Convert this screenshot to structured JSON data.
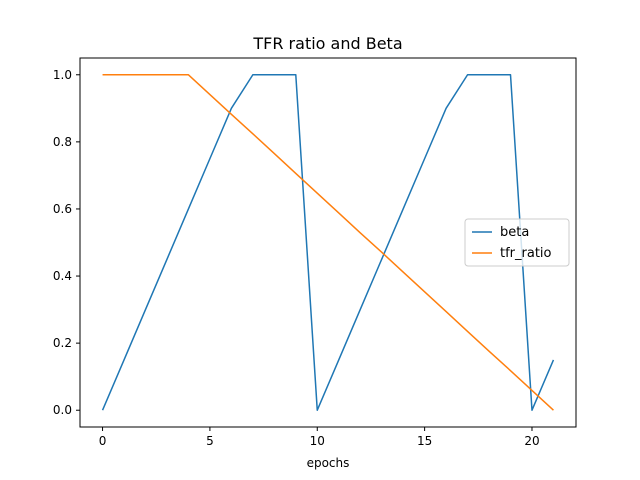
{
  "chart_data": {
    "type": "line",
    "title": "TFR ratio and Beta",
    "xlabel": "epochs",
    "ylabel": "",
    "xlim": [
      -1.05,
      22.05
    ],
    "ylim": [
      -0.05,
      1.05
    ],
    "xticks": [
      0,
      5,
      10,
      15,
      20
    ],
    "yticks": [
      0.0,
      0.2,
      0.4,
      0.6,
      0.8,
      1.0
    ],
    "ytick_labels": [
      "0.0",
      "0.2",
      "0.4",
      "0.6",
      "0.8",
      "1.0"
    ],
    "grid": false,
    "legend_position": "center-right",
    "x": [
      0,
      1,
      2,
      3,
      4,
      5,
      6,
      7,
      8,
      9,
      10,
      11,
      12,
      13,
      14,
      15,
      16,
      17,
      18,
      19,
      20,
      21
    ],
    "series": [
      {
        "name": "beta",
        "color": "#1f77b4",
        "values": [
          0.0,
          0.15,
          0.3,
          0.45,
          0.6,
          0.75,
          0.9,
          1.0,
          1.0,
          1.0,
          0.0,
          0.15,
          0.3,
          0.45,
          0.6,
          0.75,
          0.9,
          1.0,
          1.0,
          1.0,
          0.0,
          0.15
        ]
      },
      {
        "name": "tfr_ratio",
        "color": "#ff7f0e",
        "values": [
          1.0,
          1.0,
          1.0,
          1.0,
          1.0,
          0.941,
          0.882,
          0.824,
          0.765,
          0.706,
          0.647,
          0.588,
          0.529,
          0.471,
          0.412,
          0.353,
          0.294,
          0.235,
          0.176,
          0.118,
          0.059,
          0.0
        ]
      }
    ]
  }
}
